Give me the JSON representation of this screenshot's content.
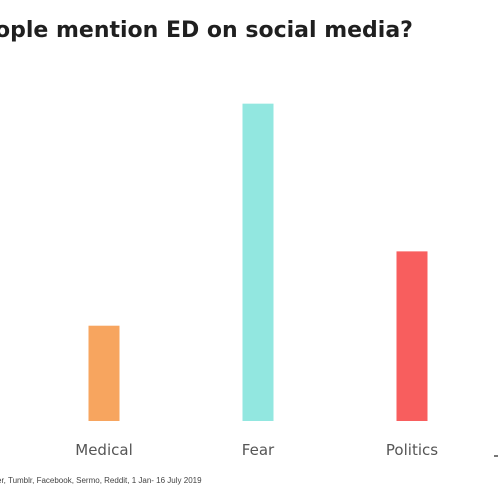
{
  "chart_data": {
    "type": "bar",
    "title": "ople mention ED on social media?",
    "categories": [
      "Medical",
      "Fear",
      "Politics"
    ],
    "values": [
      100,
      333,
      178
    ],
    "colors": [
      "#f7a55f",
      "#92e7e0",
      "#f85e5e"
    ],
    "ylim": [
      0,
      340
    ],
    "grid": false,
    "legend": "none",
    "source": "er, Tumblr, Facebook, Sermo, Reddit, 1 Jan- 16 July 2019"
  }
}
